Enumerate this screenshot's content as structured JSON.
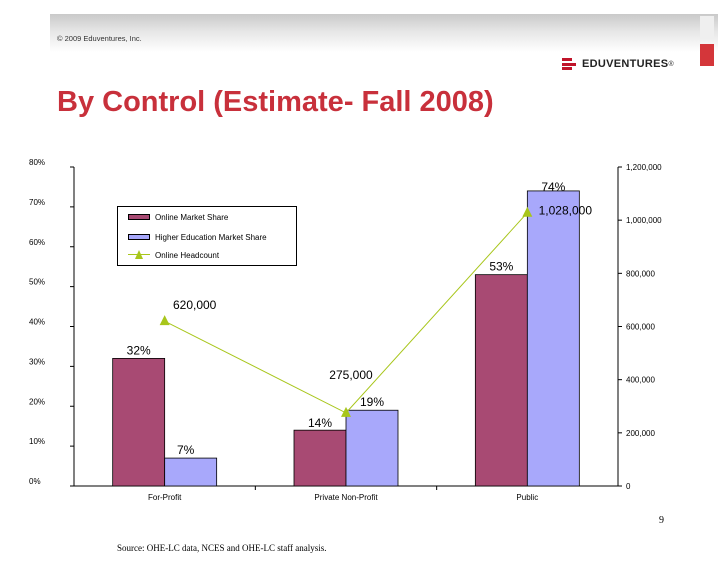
{
  "header": {
    "copyright": "© 2009 Eduventures, Inc.",
    "logo_text": "EDUVENTURES",
    "logo_trademark": "®",
    "title": "By Control (Estimate- Fall 2008)"
  },
  "footer": {
    "source": "Source: OHE-LC data, NCES and OHE-LC staff analysis.",
    "page_number": "9"
  },
  "colors": {
    "online_market_share": "#a84a73",
    "higher_ed_market_share": "#a8a8fb",
    "online_headcount": "#a8c61b",
    "title": "#c8303b"
  },
  "chart_data": {
    "type": "bar",
    "title": "",
    "xlabel": "",
    "ylabel": "",
    "categories": [
      "For-Profit",
      "Private Non-Profit",
      "Public"
    ],
    "series": [
      {
        "name": "Online Market Share",
        "axis": "left",
        "values": [
          32,
          14,
          53
        ],
        "labels": [
          "32%",
          "14%",
          "53%"
        ]
      },
      {
        "name": "Higher Education Market Share",
        "axis": "left",
        "values": [
          7,
          19,
          74
        ],
        "labels": [
          "7%",
          "19%",
          "74%"
        ]
      },
      {
        "name": "Online Headcount",
        "axis": "right",
        "type": "line",
        "marker": "triangle",
        "values": [
          620000,
          275000,
          1028000
        ],
        "labels": [
          "620,000",
          "275,000",
          "1,028,000"
        ]
      }
    ],
    "left_axis": {
      "ylim": [
        0,
        80
      ],
      "ticks": [
        "0%",
        "10%",
        "20%",
        "30%",
        "40%",
        "50%",
        "60%",
        "70%",
        "80%"
      ]
    },
    "right_axis": {
      "ylim": [
        0,
        1200000
      ],
      "ticks": [
        "0",
        "200,000",
        "400,000",
        "600,000",
        "800,000",
        "1,000,000",
        "1,200,000"
      ]
    },
    "grid": false,
    "legend_position": "upper-left"
  }
}
